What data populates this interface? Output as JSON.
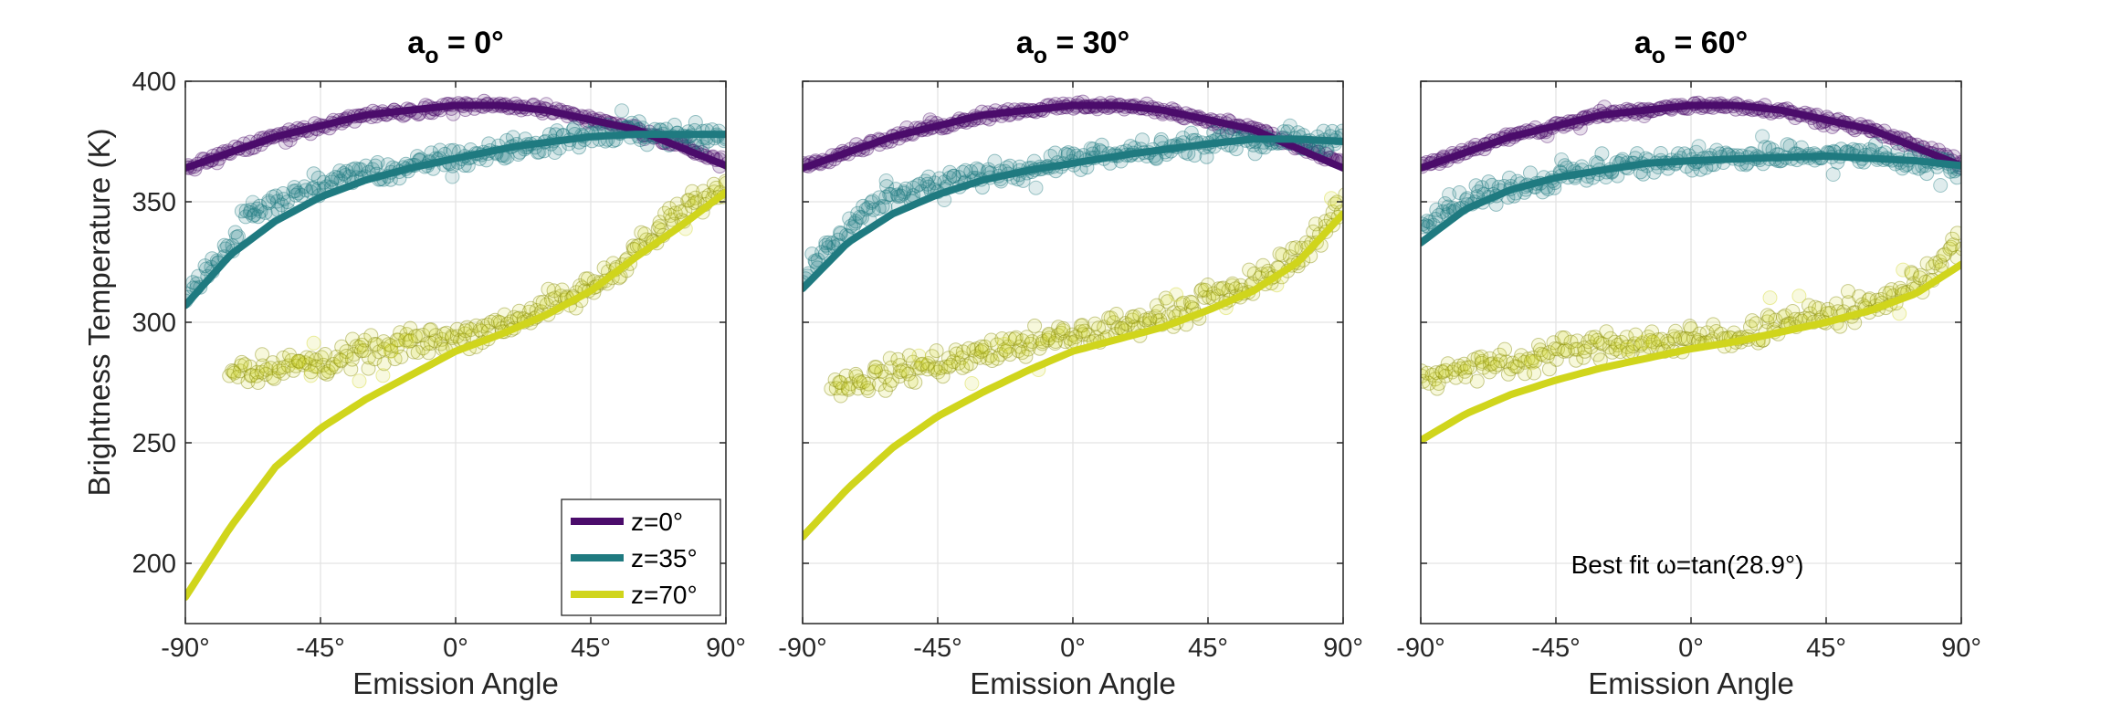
{
  "figure": {
    "shared_ylabel": "Brightness Temperature (K)",
    "annotation": "Best fit ω=tan(28.9°)"
  },
  "chart_data": [
    {
      "type": "scatter",
      "title_main": "a",
      "title_sub": "o",
      "title_rest": " = 0°",
      "xlabel": "Emission Angle",
      "ylabel": "Brightness Temperature (K)",
      "xlim": [
        -90,
        90
      ],
      "ylim": [
        175,
        400
      ],
      "x_ticks": [
        -90,
        -45,
        0,
        45,
        90
      ],
      "x_tick_labels": [
        "-90°",
        "-45°",
        "0°",
        "45°",
        "90°"
      ],
      "y_ticks": [
        200,
        250,
        300,
        350,
        400
      ],
      "y_tick_labels": [
        "200",
        "250",
        "300",
        "350",
        "400"
      ],
      "grid": true,
      "legend": {
        "placement": "bottom-right",
        "entries": [
          "z=0°",
          "z=35°",
          "z=70°"
        ]
      },
      "series": [
        {
          "name": "z=0°",
          "color": "#4b0c6b",
          "fit_x": [
            -90,
            -60,
            -30,
            0,
            15,
            30,
            60,
            90
          ],
          "fit_y": [
            364,
            377,
            386,
            390,
            390,
            388,
            380,
            365
          ],
          "data_x": [
            -90,
            -60,
            -30,
            0,
            15,
            30,
            60,
            90
          ],
          "data_y": [
            364,
            377,
            386,
            390,
            390,
            388,
            380,
            366
          ]
        },
        {
          "name": "z=35°",
          "color": "#1f7a80",
          "fit_x": [
            -90,
            -75,
            -60,
            -45,
            -30,
            -15,
            0,
            20,
            45,
            60,
            75,
            90
          ],
          "fit_y": [
            307,
            328,
            342,
            352,
            359,
            364,
            368,
            373,
            377,
            378,
            378,
            378
          ],
          "data_x": [
            -90,
            -80,
            -75,
            -70,
            -60,
            -45,
            -30,
            -15,
            0,
            20,
            45,
            60,
            75,
            90
          ],
          "data_y": [
            310,
            325,
            332,
            343,
            350,
            357,
            362,
            364,
            368,
            372,
            378,
            379,
            378,
            378
          ]
        },
        {
          "name": "z=70°",
          "color": "#d0d51c",
          "fit_x": [
            -90,
            -75,
            -60,
            -45,
            -30,
            -15,
            0,
            15,
            30,
            45,
            60,
            75,
            90
          ],
          "fit_y": [
            186,
            215,
            240,
            256,
            268,
            278,
            288,
            295,
            303,
            313,
            327,
            340,
            354
          ],
          "data_x": [
            -75,
            -60,
            -45,
            -30,
            -15,
            0,
            15,
            30,
            45,
            60,
            75,
            90
          ],
          "data_y": [
            280,
            281,
            283,
            287,
            291,
            294,
            299,
            306,
            314,
            330,
            345,
            357
          ]
        }
      ]
    },
    {
      "type": "scatter",
      "title_main": "a",
      "title_sub": "o",
      "title_rest": " = 30°",
      "xlabel": "Emission Angle",
      "xlim": [
        -90,
        90
      ],
      "ylim": [
        175,
        400
      ],
      "x_ticks": [
        -90,
        -45,
        0,
        45,
        90
      ],
      "x_tick_labels": [
        "-90°",
        "-45°",
        "0°",
        "45°",
        "90°"
      ],
      "y_ticks": [
        200,
        250,
        300,
        350,
        400
      ],
      "grid": true,
      "series": [
        {
          "name": "z=0°",
          "color": "#4b0c6b",
          "fit_x": [
            -90,
            -60,
            -30,
            0,
            15,
            30,
            60,
            90
          ],
          "fit_y": [
            364,
            377,
            386,
            390,
            390,
            388,
            380,
            364
          ],
          "data_x": [
            -90,
            -60,
            -30,
            0,
            15,
            30,
            60,
            90
          ],
          "data_y": [
            365,
            377,
            386,
            390,
            390,
            388,
            380,
            366
          ]
        },
        {
          "name": "z=35°",
          "color": "#1f7a80",
          "fit_x": [
            -90,
            -75,
            -60,
            -45,
            -30,
            -15,
            0,
            20,
            45,
            60,
            75,
            90
          ],
          "fit_y": [
            314,
            333,
            345,
            353,
            359,
            363,
            366,
            370,
            374,
            376,
            376,
            375
          ],
          "data_x": [
            -90,
            -80,
            -70,
            -60,
            -45,
            -30,
            -15,
            0,
            20,
            45,
            60,
            75,
            90
          ],
          "data_y": [
            318,
            332,
            345,
            352,
            357,
            361,
            364,
            367,
            370,
            374,
            376,
            376,
            376
          ]
        },
        {
          "name": "z=70°",
          "color": "#d0d51c",
          "fit_x": [
            -90,
            -75,
            -60,
            -45,
            -30,
            -15,
            0,
            15,
            30,
            45,
            60,
            75,
            90
          ],
          "fit_y": [
            211,
            231,
            248,
            261,
            271,
            280,
            288,
            293,
            298,
            305,
            313,
            325,
            345
          ],
          "data_x": [
            -80,
            -60,
            -45,
            -30,
            -15,
            0,
            15,
            30,
            45,
            60,
            75,
            90
          ],
          "data_y": [
            273,
            279,
            283,
            287,
            291,
            294,
            298,
            303,
            309,
            316,
            328,
            348
          ]
        }
      ]
    },
    {
      "type": "scatter",
      "title_main": "a",
      "title_sub": "o",
      "title_rest": " = 60°",
      "xlabel": "Emission Angle",
      "xlim": [
        -90,
        90
      ],
      "ylim": [
        175,
        400
      ],
      "x_ticks": [
        -90,
        -45,
        0,
        45,
        90
      ],
      "x_tick_labels": [
        "-90°",
        "-45°",
        "0°",
        "45°",
        "90°"
      ],
      "y_ticks": [
        200,
        250,
        300,
        350,
        400
      ],
      "grid": true,
      "annotation": "Best fit ω=tan(28.9°)",
      "series": [
        {
          "name": "z=0°",
          "color": "#4b0c6b",
          "fit_x": [
            -90,
            -60,
            -30,
            0,
            15,
            30,
            60,
            90
          ],
          "fit_y": [
            364,
            377,
            386,
            390,
            390,
            388,
            380,
            365
          ],
          "data_x": [
            -90,
            -60,
            -30,
            0,
            15,
            30,
            60,
            90
          ],
          "data_y": [
            365,
            377,
            386,
            390,
            390,
            388,
            380,
            366
          ]
        },
        {
          "name": "z=35°",
          "color": "#1f7a80",
          "fit_x": [
            -90,
            -75,
            -60,
            -45,
            -30,
            -15,
            0,
            20,
            45,
            60,
            75,
            90
          ],
          "fit_y": [
            333,
            347,
            355,
            360,
            363,
            366,
            367,
            368,
            369,
            368,
            367,
            365
          ],
          "data_x": [
            -90,
            -75,
            -60,
            -45,
            -30,
            -15,
            0,
            20,
            45,
            60,
            75,
            90
          ],
          "data_y": [
            340,
            350,
            356,
            360,
            364,
            366,
            367,
            369,
            370,
            369,
            367,
            364
          ]
        },
        {
          "name": "z=70°",
          "color": "#d0d51c",
          "fit_x": [
            -90,
            -75,
            -60,
            -45,
            -30,
            -15,
            0,
            15,
            30,
            45,
            60,
            75,
            90
          ],
          "fit_y": [
            251,
            262,
            270,
            276,
            281,
            285,
            289,
            292,
            296,
            300,
            305,
            312,
            324
          ],
          "data_x": [
            -90,
            -75,
            -60,
            -45,
            -30,
            -15,
            0,
            15,
            30,
            45,
            60,
            75,
            90
          ],
          "data_y": [
            278,
            280,
            284,
            288,
            290,
            292,
            292,
            295,
            299,
            303,
            307,
            316,
            333
          ]
        }
      ]
    }
  ]
}
